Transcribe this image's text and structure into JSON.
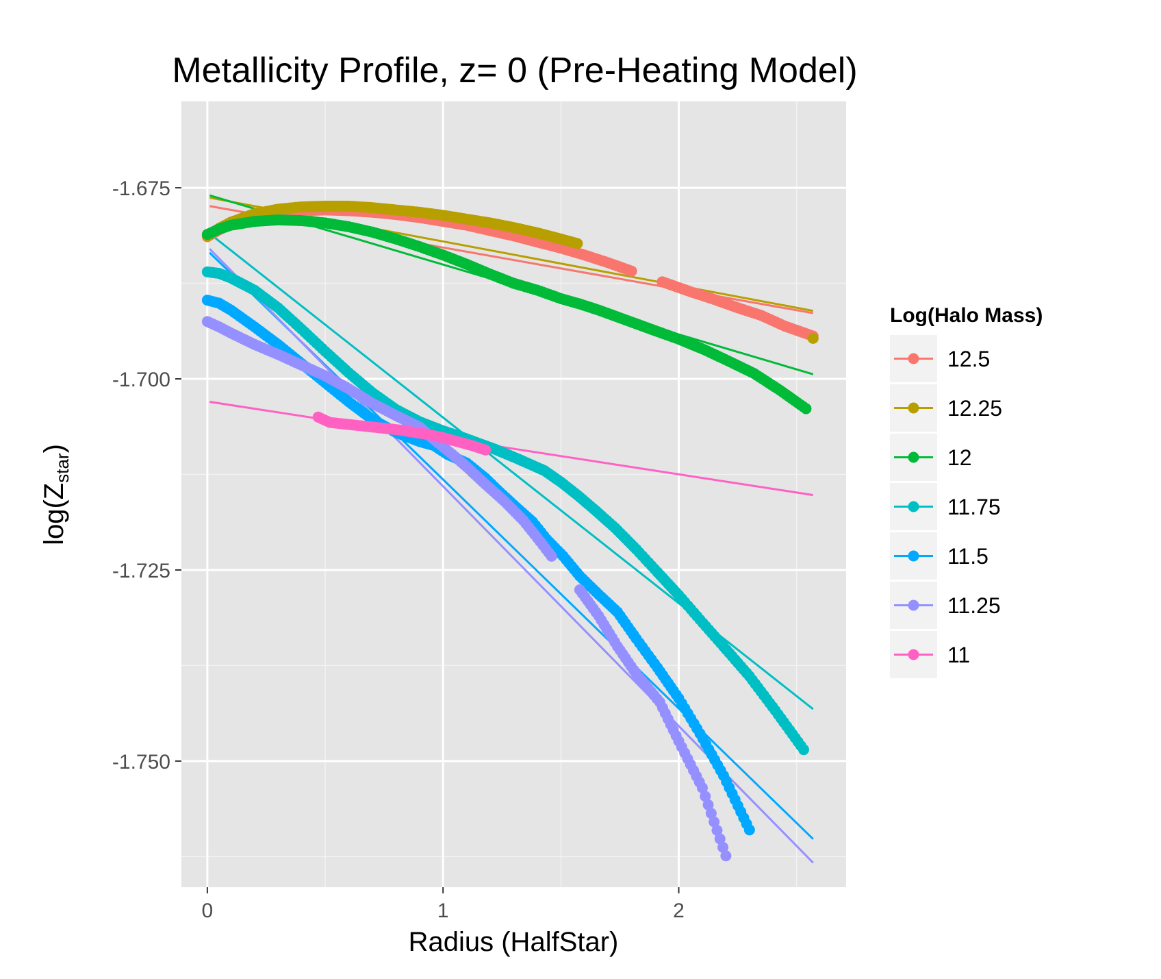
{
  "chart_data": {
    "type": "scatter",
    "title": "Metallicity Profile, z= 0 (Pre-Heating Model)",
    "xlabel": "Radius (HalfStar)",
    "ylabel": {
      "prefix": "log(Z",
      "subscript": "star",
      "suffix": ")"
    },
    "xlim": [
      -0.11,
      2.71
    ],
    "ylim": [
      -1.7665,
      -1.6637
    ],
    "x_ticks": [
      0,
      1,
      2
    ],
    "x_tick_labels": [
      "0",
      "1",
      "2"
    ],
    "y_ticks": [
      -1.675,
      -1.7,
      -1.725,
      -1.75
    ],
    "y_tick_labels": [
      "-1.675",
      "-1.700",
      "-1.725",
      "-1.750"
    ],
    "grid": true,
    "legend_position": "right",
    "legend_title": "Log(Halo Mass)",
    "series": [
      {
        "name": "12.5",
        "color": "#F8766D",
        "points": [
          [
            0,
            -1.6814
          ],
          [
            0.05,
            -1.6805
          ],
          [
            0.1,
            -1.6798
          ],
          [
            0.2,
            -1.6789
          ],
          [
            0.3,
            -1.6783
          ],
          [
            0.4,
            -1.678
          ],
          [
            0.5,
            -1.6779
          ],
          [
            0.6,
            -1.678
          ],
          [
            0.7,
            -1.6782
          ],
          [
            0.8,
            -1.6785
          ],
          [
            0.9,
            -1.6789
          ],
          [
            1.0,
            -1.6794
          ],
          [
            1.1,
            -1.6799
          ],
          [
            1.2,
            -1.6806
          ],
          [
            1.3,
            -1.6813
          ],
          [
            1.4,
            -1.6821
          ],
          [
            1.5,
            -1.6829
          ],
          [
            1.6,
            -1.6838
          ],
          [
            1.7,
            -1.6848
          ],
          [
            1.8,
            -1.6859
          ],
          [
            1.93,
            -1.6873
          ],
          [
            2.05,
            -1.6886
          ],
          [
            2.15,
            -1.6896
          ],
          [
            2.25,
            -1.6907
          ],
          [
            2.35,
            -1.6917
          ],
          [
            2.45,
            -1.6931
          ],
          [
            2.57,
            -1.6944
          ]
        ],
        "fit": [
          [
            0.01,
            -1.6774
          ],
          [
            2.57,
            -1.6914
          ]
        ]
      },
      {
        "name": "12.25",
        "color": "#B79F00",
        "points": [
          [
            0,
            -1.6813
          ],
          [
            0.05,
            -1.6803
          ],
          [
            0.1,
            -1.6795
          ],
          [
            0.2,
            -1.6784
          ],
          [
            0.3,
            -1.6778
          ],
          [
            0.4,
            -1.6775
          ],
          [
            0.5,
            -1.6774
          ],
          [
            0.6,
            -1.6774
          ],
          [
            0.7,
            -1.6776
          ],
          [
            0.8,
            -1.6779
          ],
          [
            0.9,
            -1.6782
          ],
          [
            1.0,
            -1.6786
          ],
          [
            1.1,
            -1.6791
          ],
          [
            1.2,
            -1.6796
          ],
          [
            1.3,
            -1.6802
          ],
          [
            1.4,
            -1.6809
          ],
          [
            1.5,
            -1.6817
          ],
          [
            1.57,
            -1.6823
          ],
          [
            2.57,
            -1.6947
          ]
        ],
        "fit": [
          [
            0.01,
            -1.6763
          ],
          [
            2.57,
            -1.6911
          ]
        ]
      },
      {
        "name": "12",
        "color": "#00BA38",
        "points": [
          [
            0,
            -1.6811
          ],
          [
            0.05,
            -1.6804
          ],
          [
            0.1,
            -1.6799
          ],
          [
            0.2,
            -1.6794
          ],
          [
            0.3,
            -1.6792
          ],
          [
            0.4,
            -1.6793
          ],
          [
            0.5,
            -1.6796
          ],
          [
            0.6,
            -1.6801
          ],
          [
            0.7,
            -1.6808
          ],
          [
            0.8,
            -1.6817
          ],
          [
            0.9,
            -1.6827
          ],
          [
            1.0,
            -1.6838
          ],
          [
            1.1,
            -1.685
          ],
          [
            1.2,
            -1.6863
          ],
          [
            1.3,
            -1.6875
          ],
          [
            1.4,
            -1.6884
          ],
          [
            1.5,
            -1.6895
          ],
          [
            1.58,
            -1.6902
          ],
          [
            1.66,
            -1.691
          ],
          [
            1.74,
            -1.6919
          ],
          [
            1.82,
            -1.6928
          ],
          [
            1.9,
            -1.6937
          ],
          [
            2.0,
            -1.6948
          ],
          [
            2.11,
            -1.6962
          ],
          [
            2.22,
            -1.6978
          ],
          [
            2.32,
            -1.6993
          ],
          [
            2.43,
            -1.7015
          ],
          [
            2.54,
            -1.7039
          ]
        ],
        "fit": [
          [
            0.01,
            -1.676
          ],
          [
            2.57,
            -1.6994
          ]
        ]
      },
      {
        "name": "11.75",
        "color": "#00BFC4",
        "points": [
          [
            0,
            -1.686
          ],
          [
            0.05,
            -1.6862
          ],
          [
            0.1,
            -1.6868
          ],
          [
            0.2,
            -1.6884
          ],
          [
            0.3,
            -1.6907
          ],
          [
            0.4,
            -1.6935
          ],
          [
            0.5,
            -1.6964
          ],
          [
            0.6,
            -1.6992
          ],
          [
            0.7,
            -1.7018
          ],
          [
            0.8,
            -1.704
          ],
          [
            0.9,
            -1.7056
          ],
          [
            1.0,
            -1.7068
          ],
          [
            1.06,
            -1.7074
          ],
          [
            1.14,
            -1.7083
          ],
          [
            1.22,
            -1.7092
          ],
          [
            1.32,
            -1.7105
          ],
          [
            1.43,
            -1.712
          ],
          [
            1.5,
            -1.7135
          ],
          [
            1.57,
            -1.7152
          ],
          [
            1.65,
            -1.7173
          ],
          [
            1.73,
            -1.7195
          ],
          [
            1.82,
            -1.7223
          ],
          [
            1.91,
            -1.7253
          ],
          [
            2.0,
            -1.7283
          ],
          [
            2.09,
            -1.7315
          ],
          [
            2.19,
            -1.735
          ],
          [
            2.3,
            -1.7389
          ],
          [
            2.41,
            -1.7434
          ],
          [
            2.53,
            -1.7485
          ]
        ],
        "fit": [
          [
            0.01,
            -1.681
          ],
          [
            2.57,
            -1.7432
          ]
        ]
      },
      {
        "name": "11.5",
        "color": "#00A9FF",
        "points": [
          [
            0,
            -1.6897
          ],
          [
            0.05,
            -1.6901
          ],
          [
            0.1,
            -1.691
          ],
          [
            0.2,
            -1.6932
          ],
          [
            0.3,
            -1.6955
          ],
          [
            0.4,
            -1.698
          ],
          [
            0.5,
            -1.7005
          ],
          [
            0.6,
            -1.703
          ],
          [
            0.7,
            -1.7053
          ],
          [
            0.8,
            -1.707
          ],
          [
            0.9,
            -1.7082
          ],
          [
            0.96,
            -1.7087
          ],
          [
            1.02,
            -1.7099
          ],
          [
            1.1,
            -1.711
          ],
          [
            1.18,
            -1.713
          ],
          [
            1.23,
            -1.7145
          ],
          [
            1.3,
            -1.7165
          ],
          [
            1.38,
            -1.7187
          ],
          [
            1.44,
            -1.721
          ],
          [
            1.51,
            -1.7232
          ],
          [
            1.58,
            -1.7258
          ],
          [
            1.66,
            -1.7282
          ],
          [
            1.74,
            -1.7305
          ],
          [
            1.82,
            -1.734
          ],
          [
            1.91,
            -1.7378
          ],
          [
            2.0,
            -1.7418
          ],
          [
            2.09,
            -1.7464
          ],
          [
            2.19,
            -1.7519
          ],
          [
            2.3,
            -1.759
          ]
        ],
        "fit": [
          [
            0.01,
            -1.6835
          ],
          [
            2.57,
            -1.7602
          ]
        ]
      },
      {
        "name": "11.25",
        "color": "#9590FF",
        "points": [
          [
            0,
            -1.6925
          ],
          [
            0.05,
            -1.6932
          ],
          [
            0.1,
            -1.694
          ],
          [
            0.2,
            -1.6955
          ],
          [
            0.3,
            -1.6968
          ],
          [
            0.4,
            -1.6982
          ],
          [
            0.5,
            -1.6996
          ],
          [
            0.6,
            -1.7013
          ],
          [
            0.7,
            -1.7032
          ],
          [
            0.8,
            -1.7048
          ],
          [
            0.9,
            -1.7063
          ],
          [
            0.98,
            -1.7084
          ],
          [
            1.04,
            -1.7099
          ],
          [
            1.1,
            -1.7115
          ],
          [
            1.18,
            -1.7138
          ],
          [
            1.26,
            -1.716
          ],
          [
            1.34,
            -1.7185
          ],
          [
            1.4,
            -1.7208
          ],
          [
            1.46,
            -1.7232
          ],
          [
            1.58,
            -1.7276
          ],
          [
            1.66,
            -1.731
          ],
          [
            1.74,
            -1.735
          ],
          [
            1.82,
            -1.7386
          ],
          [
            1.92,
            -1.7423
          ],
          [
            2.0,
            -1.7474
          ],
          [
            2.1,
            -1.7535
          ],
          [
            2.2,
            -1.7624
          ]
        ],
        "fit": [
          [
            0.01,
            -1.683
          ],
          [
            2.57,
            -1.7633
          ]
        ]
      },
      {
        "name": "11",
        "color": "#FF61C3",
        "points": [
          [
            0.47,
            -1.705
          ],
          [
            0.52,
            -1.7057
          ],
          [
            0.58,
            -1.7059
          ],
          [
            0.64,
            -1.7061
          ],
          [
            0.7,
            -1.7063
          ],
          [
            0.76,
            -1.7065
          ],
          [
            0.82,
            -1.7067
          ],
          [
            0.88,
            -1.707
          ],
          [
            0.94,
            -1.7073
          ],
          [
            1.0,
            -1.7077
          ],
          [
            1.06,
            -1.7082
          ],
          [
            1.12,
            -1.7087
          ],
          [
            1.18,
            -1.7093
          ]
        ],
        "fit": [
          [
            0.01,
            -1.703
          ],
          [
            2.57,
            -1.7152
          ]
        ]
      }
    ]
  }
}
